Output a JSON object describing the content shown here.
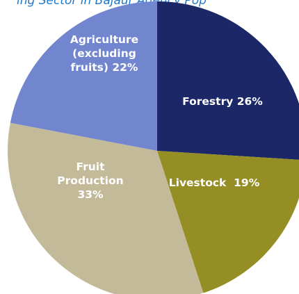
{
  "header": {
    "partial_title": "ing Sector in Bajaur Agency Pop"
  },
  "chart_data": {
    "type": "pie",
    "title": "",
    "slices": [
      {
        "label": "Forestry 26%",
        "category": "Forestry",
        "value": 26,
        "color": "#1b2766"
      },
      {
        "label": "Livestock  19%",
        "category": "Livestock",
        "value": 19,
        "color": "#958e25"
      },
      {
        "label": "Fruit Production 33%",
        "category": "Fruit Production",
        "value": 33,
        "color": "#c3ba9a"
      },
      {
        "label": "Agriculture (excluding fruits) 22%",
        "category": "Agriculture (excluding fruits)",
        "value": 22,
        "color": "#7186cf"
      }
    ],
    "label_lines": [
      [
        "Forestry 26%"
      ],
      [
        "Livestock  19%"
      ],
      [
        "Fruit",
        "Production",
        "33%"
      ],
      [
        "Agriculture",
        "(excluding",
        "fruits) 22%"
      ]
    ],
    "start_angle_deg": 0,
    "direction": "clockwise",
    "legend": "none",
    "labels_inside": true
  }
}
